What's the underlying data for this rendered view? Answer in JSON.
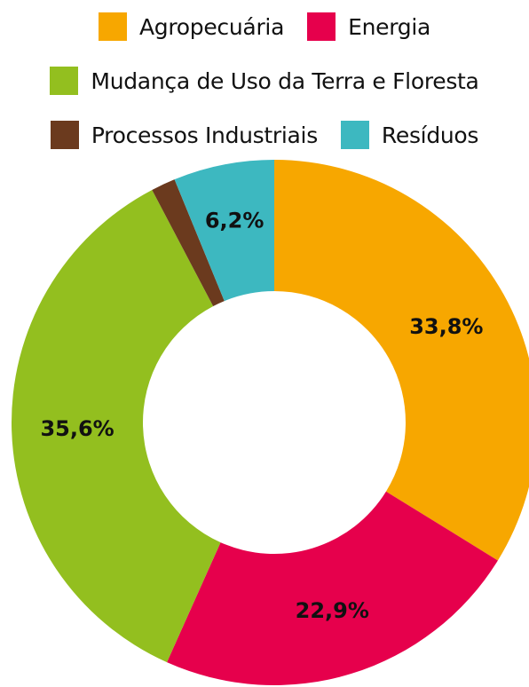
{
  "chart_data": {
    "type": "pie",
    "variant": "donut",
    "title": "",
    "legend_position": "top",
    "series": [
      {
        "name": "Agropecuária",
        "value": 33.8,
        "label": "33,8%",
        "color": "#F7A700"
      },
      {
        "name": "Energia",
        "value": 22.9,
        "label": "22,9%",
        "color": "#E6004C"
      },
      {
        "name": "Mudança de Uso da Terra e Floresta",
        "value": 35.6,
        "label": "35,6%",
        "color": "#93BF1F"
      },
      {
        "name": "Processos Industriais",
        "value": 1.5,
        "label": "",
        "color": "#6B3A1E"
      },
      {
        "name": "Resíduos",
        "value": 6.2,
        "label": "6,2%",
        "color": "#3DB8C0"
      }
    ]
  }
}
